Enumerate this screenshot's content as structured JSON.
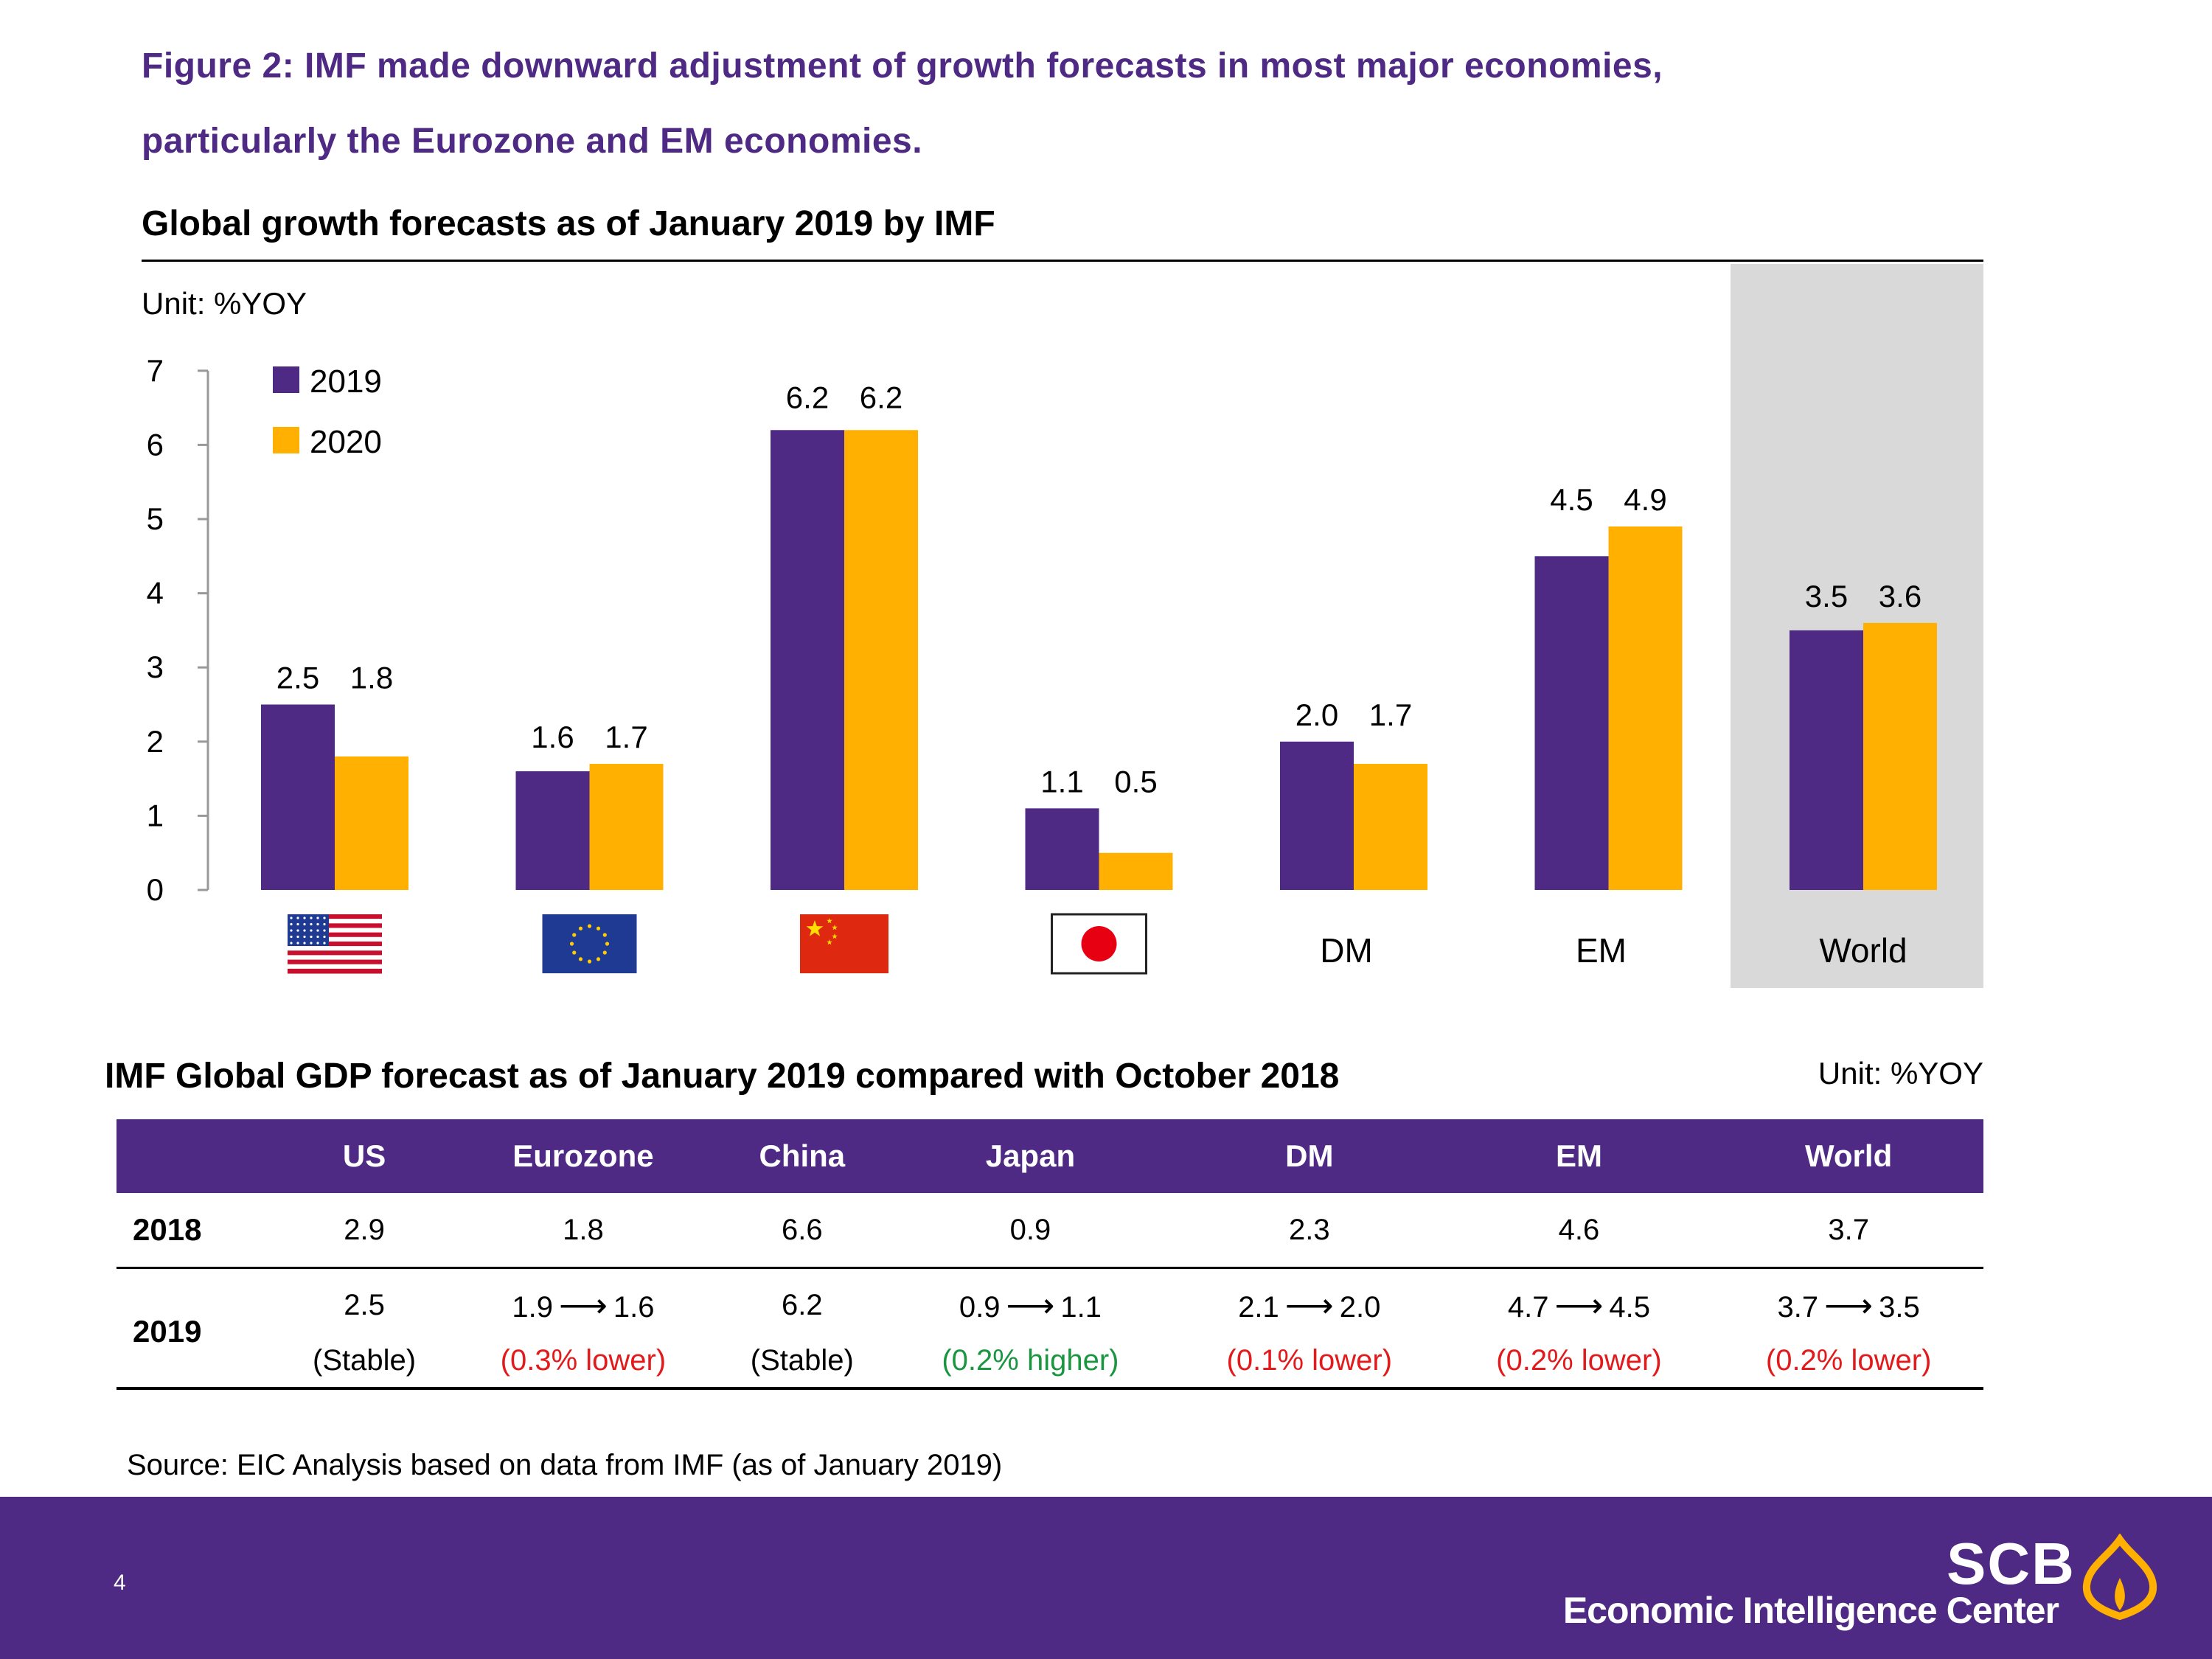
{
  "figure_title": {
    "line1": "Figure 2: IMF made downward adjustment of growth forecasts in most major economies,",
    "line2": "particularly the Eurozone and EM economies."
  },
  "chart_data": {
    "type": "bar",
    "title": "Global growth forecasts as of January 2019 by IMF",
    "unit": "Unit:  %YOY",
    "categories": [
      "US",
      "Eurozone",
      "China",
      "Japan",
      "DM",
      "EM",
      "World"
    ],
    "category_labels": [
      "",
      "",
      "",
      "",
      "DM",
      "EM",
      "World"
    ],
    "category_icons": [
      "us-flag",
      "eu-flag",
      "china-flag",
      "japan-flag",
      "",
      "",
      ""
    ],
    "highlighted_category": "World",
    "series": [
      {
        "name": "2019",
        "color": "#4e2a84",
        "values": [
          2.5,
          1.6,
          6.2,
          1.1,
          2.0,
          4.5,
          3.5
        ],
        "labels": [
          "2.5",
          "1.6",
          "6.2",
          "1.1",
          "2.0",
          "4.5",
          "3.5"
        ]
      },
      {
        "name": "2020",
        "color": "#ffb000",
        "values": [
          1.8,
          1.7,
          6.2,
          0.5,
          1.7,
          4.9,
          3.6
        ],
        "labels": [
          "1.8",
          "1.7",
          "6.2",
          "0.5",
          "1.7",
          "4.9",
          "3.6"
        ]
      }
    ],
    "ylim": [
      0,
      7
    ],
    "yticks": [
      0,
      1,
      2,
      3,
      4,
      5,
      6,
      7
    ],
    "legend_position": "top-left",
    "grid": false,
    "highlight_color": "#d9d9d9"
  },
  "table": {
    "title": "IMF Global GDP forecast as of January 2019 compared with October 2018",
    "unit": "Unit: %YOY",
    "headers": [
      "US",
      "Eurozone",
      "China",
      "Japan",
      "DM",
      "EM",
      "World"
    ],
    "row_2018": {
      "label": "2018",
      "values": [
        "2.9",
        "1.8",
        "6.6",
        "0.9",
        "2.3",
        "4.6",
        "3.7"
      ]
    },
    "row_2019": {
      "label": "2019",
      "cells": [
        {
          "from": "",
          "to": "2.5",
          "note": "(Stable)",
          "tone": "neutral"
        },
        {
          "from": "1.9",
          "to": "1.6",
          "note": "(0.3% lower)",
          "tone": "down"
        },
        {
          "from": "",
          "to": "6.2",
          "note": "(Stable)",
          "tone": "neutral"
        },
        {
          "from": "0.9",
          "to": "1.1",
          "note": "(0.2% higher)",
          "tone": "up"
        },
        {
          "from": "2.1",
          "to": "2.0",
          "note": "(0.1% lower)",
          "tone": "down"
        },
        {
          "from": "4.7",
          "to": "4.5",
          "note": "(0.2% lower)",
          "tone": "down"
        },
        {
          "from": "3.7",
          "to": "3.5",
          "note": "(0.2% lower)",
          "tone": "down"
        }
      ]
    }
  },
  "source": "Source: EIC Analysis based on data from IMF (as of January 2019)",
  "footer": {
    "page_number": "4",
    "brand": "SCB",
    "center_name": "Economic Intelligence Center"
  },
  "colors": {
    "purple": "#4e2a84",
    "orange": "#ffb000",
    "grey_highlight": "#d9d9d9",
    "up": "#1a9641",
    "down": "#e31a1c"
  }
}
